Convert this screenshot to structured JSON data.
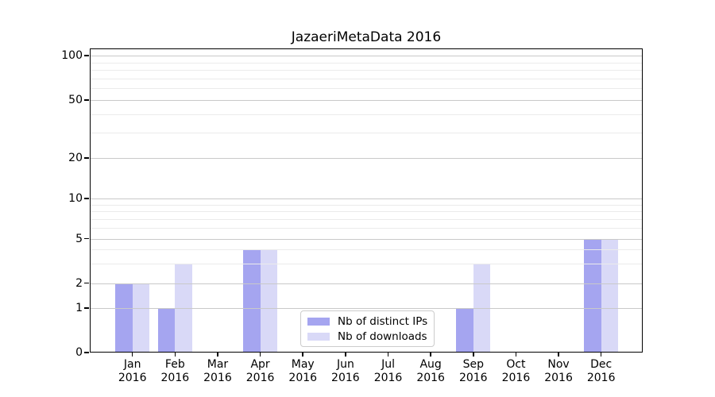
{
  "chart_data": {
    "type": "bar",
    "title": "JazaeriMetaData 2016",
    "categories": [
      "Jan",
      "Feb",
      "Mar",
      "Apr",
      "May",
      "Jun",
      "Jul",
      "Aug",
      "Sep",
      "Oct",
      "Nov",
      "Dec"
    ],
    "category_year": "2016",
    "series": [
      {
        "name": "Nb of distinct IPs",
        "values": [
          2,
          1,
          0,
          4,
          0,
          0,
          0,
          0,
          1,
          0,
          0,
          5
        ]
      },
      {
        "name": "Nb of downloads",
        "values": [
          2,
          3,
          0,
          4,
          0,
          0,
          0,
          0,
          3,
          0,
          0,
          5
        ]
      }
    ],
    "y_axis": {
      "scale": "symlog",
      "major_ticks": [
        0,
        1,
        2,
        5,
        10,
        20,
        50,
        100
      ],
      "minor_ticks": [
        3,
        4,
        6,
        7,
        8,
        9,
        30,
        40,
        60,
        70,
        80,
        90
      ],
      "ylim": [
        0,
        110
      ]
    },
    "grid": "both",
    "legend_position": "lower center"
  },
  "colors": {
    "bar_dark": "#a5a5f0",
    "bar_light": "#d9d9f7",
    "grid_major": "#c9c9c9",
    "grid_minor": "#ebebeb",
    "spine": "#000000",
    "legend_border": "#cccccc"
  }
}
